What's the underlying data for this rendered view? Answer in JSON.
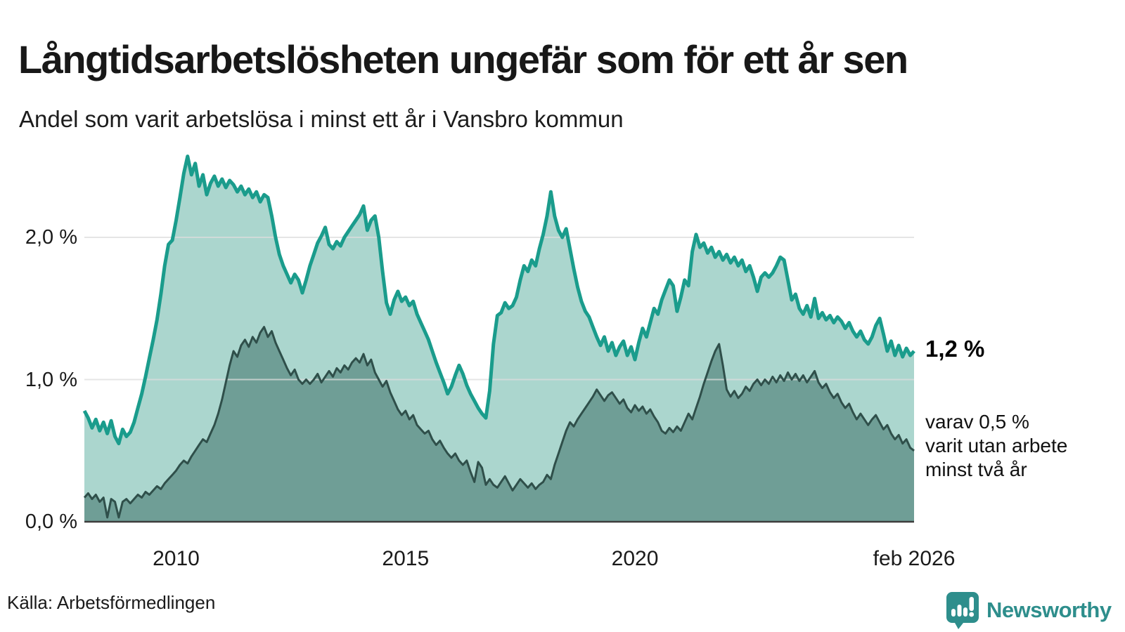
{
  "header": {
    "title": "Långtidsarbetslösheten ungefär som för ett år sen",
    "subtitle": "Andel som varit arbetslösa i minst ett år i Vansbro kommun"
  },
  "annotations": {
    "latest_value": "1,2 %",
    "secondary": "varav 0,5 %\nvarit utan arbete\nminst två år"
  },
  "footer": {
    "source": "Källa: Arbetsförmedlingen",
    "brand": "Newsworthy",
    "logo_icon": "speech-bubble-bar-chart-exclamation"
  },
  "colors": {
    "line_one_year": "#1a9c8c",
    "fill_one_year": "#abd6ce",
    "line_two_years": "#2f4f4a",
    "fill_two_years": "#6f9e96",
    "gridline": "#dcdcdc",
    "axis_line": "#3d3d3d",
    "brand_teal": "#2e8e8c",
    "text": "#1a1a1a"
  },
  "chart_data": {
    "type": "area",
    "title": "Långtidsarbetslösheten ungefär som för ett år sen",
    "subtitle": "Andel som varit arbetslösa i minst ett år i Vansbro kommun",
    "unit": "%",
    "grid": "horizontal",
    "x_range": [
      2008.0,
      2026.083
    ],
    "ylim": [
      0,
      2.73
    ],
    "y_ticks": [
      {
        "label": "2,0 %",
        "value": 2.0
      },
      {
        "label": "1,0 %",
        "value": 1.0
      },
      {
        "label": "0,0 %",
        "value": 0.0
      }
    ],
    "x_ticks": [
      {
        "label": "2010",
        "year": 2010
      },
      {
        "label": "2015",
        "year": 2015
      },
      {
        "label": "2020",
        "year": 2020
      },
      {
        "label": "feb 2026",
        "year": 2026.083
      }
    ],
    "series": [
      {
        "name": "Andel arbetslösa minst ett år",
        "color": "#1a9c8c",
        "fill": "#abd6ce",
        "line_width": 5,
        "start_year": 2008,
        "step_months": 1,
        "latest_value_pct": 1.2,
        "values": [
          0.78,
          0.73,
          0.66,
          0.72,
          0.64,
          0.7,
          0.62,
          0.71,
          0.6,
          0.55,
          0.65,
          0.6,
          0.63,
          0.7,
          0.8,
          0.9,
          1.02,
          1.15,
          1.28,
          1.42,
          1.6,
          1.8,
          1.95,
          1.98,
          2.12,
          2.28,
          2.45,
          2.57,
          2.44,
          2.52,
          2.36,
          2.44,
          2.3,
          2.38,
          2.43,
          2.36,
          2.41,
          2.35,
          2.4,
          2.37,
          2.32,
          2.36,
          2.3,
          2.34,
          2.28,
          2.32,
          2.25,
          2.3,
          2.28,
          2.15,
          2.0,
          1.88,
          1.8,
          1.74,
          1.68,
          1.74,
          1.7,
          1.61,
          1.7,
          1.8,
          1.88,
          1.96,
          2.01,
          2.07,
          1.95,
          1.92,
          1.97,
          1.94,
          2.0,
          2.04,
          2.08,
          2.12,
          2.16,
          2.22,
          2.05,
          2.12,
          2.15,
          2.0,
          1.76,
          1.54,
          1.46,
          1.56,
          1.62,
          1.55,
          1.58,
          1.52,
          1.55,
          1.46,
          1.4,
          1.34,
          1.28,
          1.2,
          1.12,
          1.05,
          0.98,
          0.9,
          0.95,
          1.03,
          1.1,
          1.04,
          0.96,
          0.9,
          0.85,
          0.8,
          0.76,
          0.73,
          0.92,
          1.25,
          1.45,
          1.47,
          1.54,
          1.5,
          1.52,
          1.58,
          1.7,
          1.8,
          1.76,
          1.84,
          1.8,
          1.92,
          2.02,
          2.15,
          2.32,
          2.15,
          2.05,
          2.0,
          2.06,
          1.92,
          1.78,
          1.65,
          1.55,
          1.48,
          1.44,
          1.37,
          1.3,
          1.24,
          1.3,
          1.2,
          1.26,
          1.17,
          1.23,
          1.27,
          1.17,
          1.23,
          1.14,
          1.26,
          1.36,
          1.3,
          1.4,
          1.5,
          1.46,
          1.56,
          1.63,
          1.7,
          1.66,
          1.48,
          1.58,
          1.7,
          1.66,
          1.9,
          2.02,
          1.93,
          1.96,
          1.89,
          1.93,
          1.86,
          1.9,
          1.84,
          1.88,
          1.82,
          1.86,
          1.8,
          1.84,
          1.76,
          1.8,
          1.72,
          1.62,
          1.72,
          1.75,
          1.72,
          1.75,
          1.8,
          1.86,
          1.84,
          1.7,
          1.56,
          1.6,
          1.5,
          1.46,
          1.52,
          1.44,
          1.57,
          1.43,
          1.47,
          1.42,
          1.45,
          1.4,
          1.44,
          1.41,
          1.36,
          1.4,
          1.34,
          1.3,
          1.34,
          1.28,
          1.25,
          1.3,
          1.38,
          1.43,
          1.32,
          1.2,
          1.27,
          1.17,
          1.24,
          1.16,
          1.22,
          1.17,
          1.2
        ]
      },
      {
        "name": "Varav utan arbete minst två år",
        "color": "#2f4f4a",
        "fill": "#6f9e96",
        "line_width": 3,
        "start_year": 2008,
        "step_months": 1,
        "latest_value_pct": 0.5,
        "values": [
          0.17,
          0.2,
          0.16,
          0.19,
          0.14,
          0.17,
          0.03,
          0.16,
          0.14,
          0.03,
          0.14,
          0.16,
          0.13,
          0.16,
          0.19,
          0.17,
          0.21,
          0.19,
          0.22,
          0.25,
          0.23,
          0.27,
          0.3,
          0.33,
          0.36,
          0.4,
          0.43,
          0.41,
          0.46,
          0.5,
          0.54,
          0.58,
          0.56,
          0.62,
          0.68,
          0.76,
          0.86,
          0.98,
          1.1,
          1.2,
          1.16,
          1.24,
          1.28,
          1.23,
          1.3,
          1.26,
          1.33,
          1.37,
          1.3,
          1.34,
          1.26,
          1.2,
          1.14,
          1.08,
          1.03,
          1.07,
          1.0,
          0.97,
          1.0,
          0.97,
          1.0,
          1.04,
          0.98,
          1.02,
          1.06,
          1.02,
          1.08,
          1.05,
          1.1,
          1.07,
          1.12,
          1.15,
          1.12,
          1.18,
          1.1,
          1.14,
          1.05,
          1.0,
          0.95,
          0.99,
          0.91,
          0.85,
          0.79,
          0.75,
          0.78,
          0.72,
          0.75,
          0.68,
          0.65,
          0.62,
          0.64,
          0.58,
          0.54,
          0.57,
          0.52,
          0.48,
          0.45,
          0.48,
          0.43,
          0.4,
          0.43,
          0.35,
          0.28,
          0.42,
          0.38,
          0.26,
          0.3,
          0.26,
          0.24,
          0.28,
          0.32,
          0.27,
          0.22,
          0.26,
          0.3,
          0.27,
          0.24,
          0.27,
          0.23,
          0.26,
          0.28,
          0.33,
          0.3,
          0.4,
          0.48,
          0.56,
          0.64,
          0.7,
          0.67,
          0.72,
          0.76,
          0.8,
          0.84,
          0.88,
          0.93,
          0.89,
          0.85,
          0.89,
          0.91,
          0.87,
          0.83,
          0.86,
          0.8,
          0.77,
          0.82,
          0.78,
          0.81,
          0.76,
          0.79,
          0.74,
          0.7,
          0.64,
          0.62,
          0.66,
          0.63,
          0.67,
          0.64,
          0.7,
          0.76,
          0.72,
          0.8,
          0.88,
          0.97,
          1.05,
          1.13,
          1.2,
          1.25,
          1.1,
          0.93,
          0.88,
          0.92,
          0.87,
          0.9,
          0.95,
          0.92,
          0.97,
          1.0,
          0.96,
          1.0,
          0.97,
          1.02,
          0.98,
          1.03,
          0.99,
          1.05,
          1.0,
          1.04,
          0.99,
          1.03,
          0.98,
          1.02,
          1.06,
          0.98,
          0.94,
          0.97,
          0.91,
          0.87,
          0.9,
          0.84,
          0.8,
          0.83,
          0.77,
          0.72,
          0.76,
          0.72,
          0.68,
          0.72,
          0.75,
          0.7,
          0.65,
          0.68,
          0.62,
          0.58,
          0.61,
          0.55,
          0.58,
          0.52,
          0.5
        ]
      }
    ]
  }
}
